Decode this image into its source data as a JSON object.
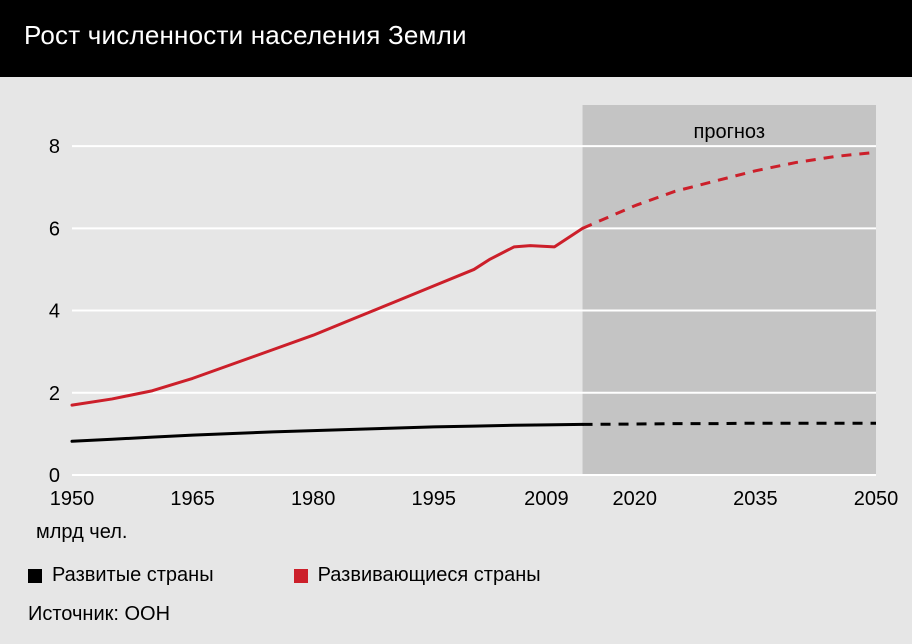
{
  "title": "Рост численности населения Земли",
  "chart": {
    "type": "line",
    "background_color": "#e6e6e6",
    "forecast_shade_color": "#c4c4c4",
    "grid_color": "#ffffff",
    "grid_linewidth": 2,
    "x": {
      "ticks": [
        1950,
        1965,
        1980,
        1995,
        2009,
        2020,
        2035,
        2050
      ],
      "tick_labels": [
        "1950",
        "1965",
        "1980",
        "1995",
        "2009",
        "2020",
        "2035",
        "2050"
      ],
      "lim": [
        1950,
        2050
      ]
    },
    "y": {
      "ticks": [
        0,
        2,
        4,
        6,
        8
      ],
      "lim": [
        0,
        9
      ],
      "unit_label": "млрд чел."
    },
    "forecast": {
      "label": "прогноз",
      "start_x": 2013.5
    },
    "series": [
      {
        "name": "Развитые страны",
        "color": "#000000",
        "linewidth": 3,
        "solid": {
          "x": [
            1950,
            1955,
            1960,
            1965,
            1970,
            1975,
            1980,
            1985,
            1990,
            1995,
            2000,
            2005,
            2009,
            2013.5
          ],
          "y": [
            0.82,
            0.87,
            0.92,
            0.97,
            1.01,
            1.05,
            1.08,
            1.11,
            1.14,
            1.17,
            1.19,
            1.21,
            1.22,
            1.23
          ]
        },
        "dashed": {
          "x": [
            2013.5,
            2020,
            2025,
            2030,
            2035,
            2040,
            2045,
            2050
          ],
          "y": [
            1.23,
            1.24,
            1.25,
            1.25,
            1.26,
            1.26,
            1.26,
            1.26
          ]
        }
      },
      {
        "name": "Развивающиеся страны",
        "color": "#cc1f2a",
        "linewidth": 3,
        "solid": {
          "x": [
            1950,
            1955,
            1960,
            1965,
            1970,
            1975,
            1980,
            1985,
            1990,
            1995,
            2000,
            2002,
            2005,
            2007,
            2010,
            2013.5
          ],
          "y": [
            1.7,
            1.85,
            2.05,
            2.35,
            2.7,
            3.05,
            3.4,
            3.8,
            4.2,
            4.6,
            5.0,
            5.25,
            5.55,
            5.58,
            5.55,
            6.0
          ]
        },
        "dashed": {
          "x": [
            2013.5,
            2020,
            2025,
            2030,
            2035,
            2040,
            2045,
            2050
          ],
          "y": [
            6.0,
            6.55,
            6.9,
            7.15,
            7.4,
            7.6,
            7.75,
            7.85
          ]
        }
      }
    ],
    "dash_pattern": "10,8",
    "title_fontsize": 26,
    "axis_fontsize": 20,
    "legend_fontsize": 20
  },
  "legend": {
    "items": [
      {
        "label": "Развитые страны",
        "color": "#000000"
      },
      {
        "label": "Развивающиеся страны",
        "color": "#cc1f2a"
      }
    ]
  },
  "source": "Источник: ООН"
}
